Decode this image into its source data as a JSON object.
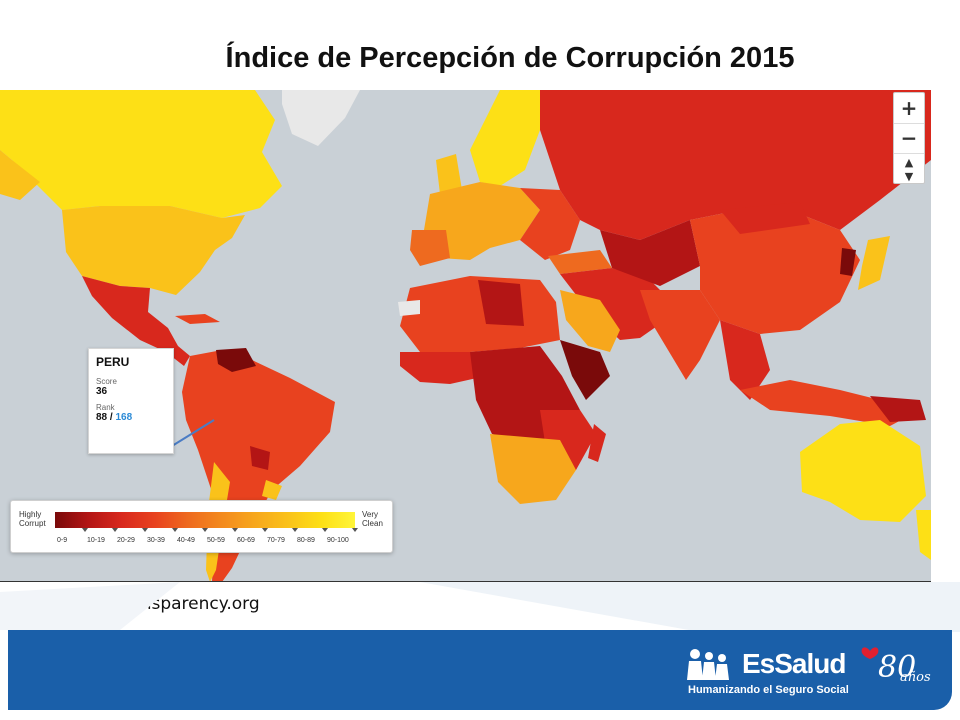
{
  "title": "Índice de Percepción de Corrupción 2015",
  "map": {
    "zoom_in": "+",
    "zoom_out": "−",
    "reset": "▲▼",
    "colors": {
      "ocean": "#c9d0d6",
      "very_clean": "#fde016",
      "clean": "#fac21a",
      "medium_clean": "#f7a71c",
      "medium": "#ee6a1f",
      "corrupt": "#e8421f",
      "very_corrupt": "#d8281d",
      "highly_corrupt": "#b31515",
      "most_corrupt": "#7a0a0a",
      "no_data": "#e8e8e8"
    }
  },
  "tooltip": {
    "country": "PERU",
    "score_label": "Score",
    "score_value": "36",
    "rank_label": "Rank",
    "rank_value": "88",
    "rank_separator": " / ",
    "rank_total": "168"
  },
  "legend": {
    "left_line1": "Highly",
    "left_line2": "Corrupt",
    "right_line1": "Very",
    "right_line2": "Clean",
    "ranges": [
      "0-9",
      "10-19",
      "20-29",
      "30-39",
      "40-49",
      "50-59",
      "60-69",
      "70-79",
      "80-89",
      "90-100"
    ]
  },
  "source": "http://www.transparency.org",
  "brand": {
    "name": "EsSalud",
    "slogan": "Humanizando el Seguro Social",
    "anniversary": "80",
    "anniversary_word": "años"
  }
}
